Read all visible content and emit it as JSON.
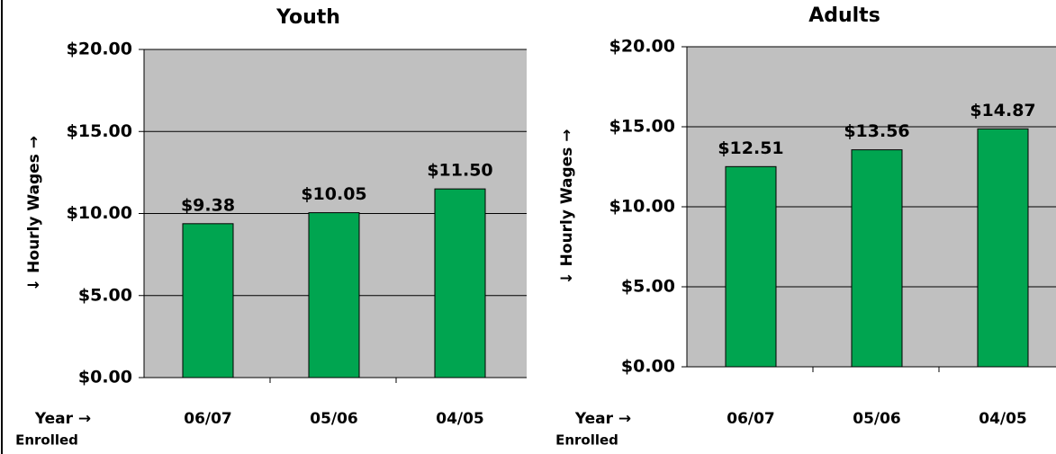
{
  "chart_data": [
    {
      "type": "bar",
      "title": "Youth",
      "y_label": "↓  Hourly Wages →",
      "x_label": "Year →",
      "x_label_2": "Enrolled",
      "categories": [
        "06/07",
        "05/06",
        "04/05"
      ],
      "values": [
        9.38,
        10.05,
        11.5
      ],
      "value_labels": [
        "$9.38",
        "$10.05",
        "$11.50"
      ],
      "color": "#00a550",
      "ylim": [
        0,
        20
      ],
      "yticks": [
        {
          "value": 0,
          "label": "$0.00"
        },
        {
          "value": 5,
          "label": "$5.00"
        },
        {
          "value": 10,
          "label": "$10.00"
        },
        {
          "value": 15,
          "label": "$15.00"
        },
        {
          "value": 20,
          "label": "$20.00"
        }
      ],
      "grid": true
    },
    {
      "type": "bar",
      "title": "Adults",
      "y_label": "↓  Hourly Wages →",
      "x_label": "Year →",
      "x_label_2": "Enrolled",
      "categories": [
        "06/07",
        "05/06",
        "04/05"
      ],
      "values": [
        12.51,
        13.56,
        14.87
      ],
      "value_labels": [
        "$12.51",
        "$13.56",
        "$14.87"
      ],
      "color": "#00a550",
      "ylim": [
        0,
        20
      ],
      "yticks": [
        {
          "value": 0,
          "label": "$0.00"
        },
        {
          "value": 5,
          "label": "$5.00"
        },
        {
          "value": 10,
          "label": "$10.00"
        },
        {
          "value": 15,
          "label": "$15.00"
        },
        {
          "value": 20,
          "label": "$20.00"
        }
      ],
      "grid": true
    }
  ]
}
